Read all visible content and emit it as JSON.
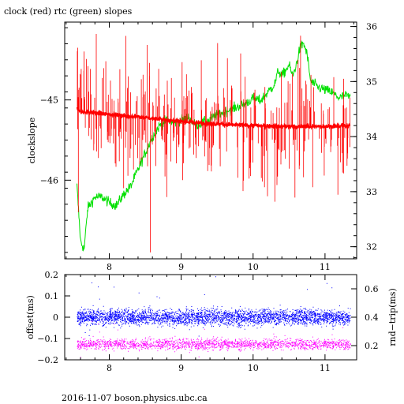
{
  "title": "clock (red) rtc (green) slopes",
  "footer": "2016-11-07  boson.physics.ubc.ca",
  "colors": {
    "clock": "#ff0000",
    "rtc": "#00e000",
    "offset": "#0000ff",
    "rndtrip": "#ff00ff",
    "axis": "#000000"
  },
  "chart_data": [
    {
      "type": "line",
      "title": "clock (red) rtc (green) slopes",
      "ylabel": "clockslope",
      "x_ticks": [
        8,
        9,
        10,
        11
      ],
      "xlim": [
        7.38,
        11.44
      ],
      "ylim": [
        -46.98,
        -44.03
      ],
      "y_ticks": [
        -45,
        -46
      ],
      "y_tick_labels": [
        "−45",
        "−46"
      ],
      "y2lim": [
        31.78,
        36.08
      ],
      "y2_ticks": [
        32,
        33,
        34,
        35,
        36
      ],
      "series": [
        {
          "color": "red",
          "axis": "left",
          "x_range": [
            7.55,
            11.35
          ],
          "x": [
            7.55,
            7.6,
            7.7,
            8.0,
            8.5,
            9.0,
            9.5,
            10.0,
            10.5,
            11.0,
            11.35
          ],
          "values": [
            -45.1,
            -45.15,
            -45.15,
            -45.18,
            -45.22,
            -45.27,
            -45.3,
            -45.32,
            -45.33,
            -45.33,
            -45.32
          ]
        },
        {
          "color": "green",
          "axis": "right",
          "x": [
            7.55,
            7.6,
            7.65,
            7.7,
            7.8,
            7.9,
            8.0,
            8.1,
            8.2,
            8.3,
            8.4,
            8.5,
            8.6,
            8.7,
            8.8,
            8.9,
            9.0,
            9.1,
            9.2,
            9.3,
            9.4,
            9.5,
            9.6,
            9.7,
            9.8,
            9.9,
            10.0,
            10.1,
            10.2,
            10.3,
            10.35,
            10.4,
            10.5,
            10.55,
            10.6,
            10.65,
            10.7,
            10.75,
            10.8,
            10.9,
            11.0,
            11.1,
            11.2,
            11.3,
            11.35
          ],
          "values": [
            33.1,
            32.1,
            31.95,
            32.7,
            32.9,
            32.9,
            32.8,
            32.75,
            32.95,
            33.1,
            33.4,
            33.7,
            34.0,
            34.2,
            34.3,
            34.25,
            34.3,
            34.35,
            34.2,
            34.25,
            34.3,
            34.4,
            34.45,
            34.5,
            34.55,
            34.6,
            34.7,
            34.65,
            34.8,
            34.95,
            35.2,
            35.1,
            35.3,
            35.1,
            35.3,
            35.6,
            35.7,
            35.5,
            35.0,
            34.9,
            34.85,
            34.8,
            34.7,
            34.75,
            34.7
          ]
        }
      ]
    },
    {
      "type": "scatter",
      "ylabel": "offset(ms)",
      "y2label": "rnd−trip(ms)",
      "x_ticks": [
        8,
        9,
        10,
        11
      ],
      "xlim": [
        7.38,
        11.44
      ],
      "ylim": [
        -0.2,
        0.2
      ],
      "y_ticks": [
        0.2,
        0.1,
        0,
        -0.1,
        -0.2
      ],
      "y_tick_labels": [
        "0.2",
        "0.1",
        "0",
        "−0.1",
        "−0.2"
      ],
      "y2lim": [
        0.1,
        0.7
      ],
      "y2_ticks": [
        0.2,
        0.4,
        0.6
      ],
      "series": [
        {
          "color": "blue",
          "axis": "left",
          "x_range": [
            7.55,
            11.35
          ],
          "center": 0.0,
          "spread": 0.04
        },
        {
          "color": "magenta",
          "axis": "right",
          "x_range": [
            7.55,
            11.35
          ],
          "center": 0.21,
          "spread": 0.04
        }
      ]
    }
  ]
}
